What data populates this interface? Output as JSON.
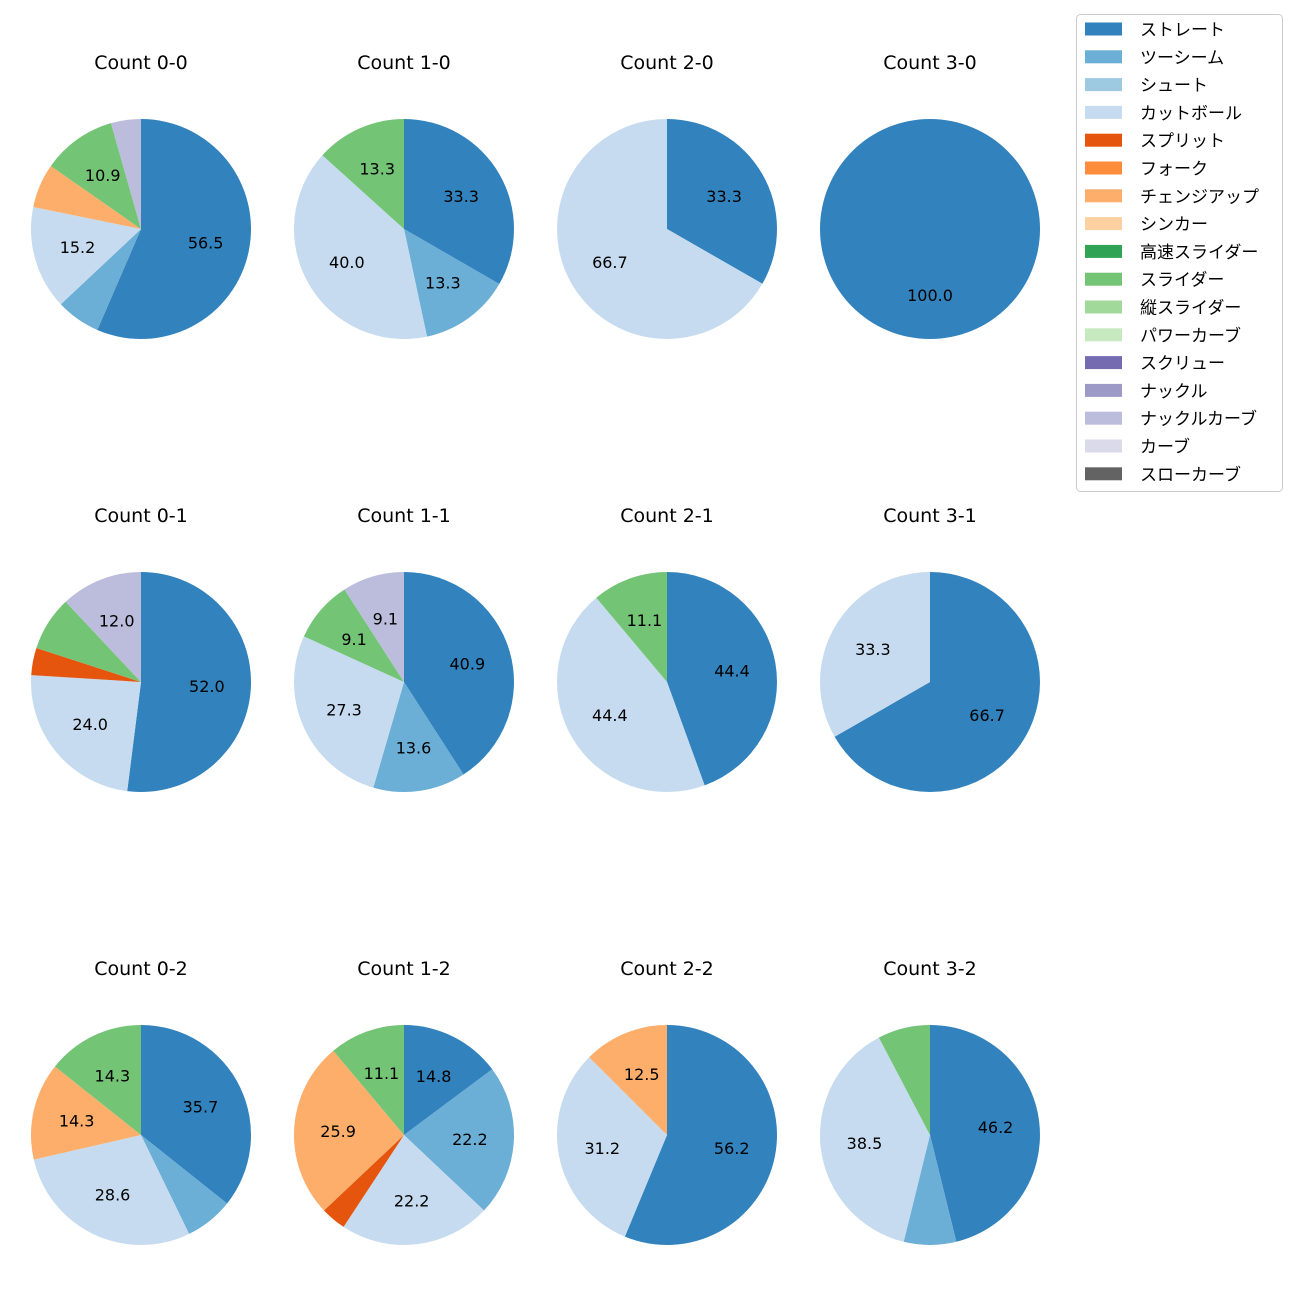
{
  "legend": {
    "items": [
      {
        "name": "ストレート",
        "color": "#3182bd"
      },
      {
        "name": "ツーシーム",
        "color": "#6baed6"
      },
      {
        "name": "シュート",
        "color": "#9ecae1"
      },
      {
        "name": "カットボール",
        "color": "#c6dbef"
      },
      {
        "name": "スプリット",
        "color": "#e6550d"
      },
      {
        "name": "フォーク",
        "color": "#fd8d3c"
      },
      {
        "name": "チェンジアップ",
        "color": "#fdae6b"
      },
      {
        "name": "シンカー",
        "color": "#fdd0a2"
      },
      {
        "name": "高速スライダー",
        "color": "#31a354"
      },
      {
        "name": "スライダー",
        "color": "#74c476"
      },
      {
        "name": "縦スライダー",
        "color": "#a1d99b"
      },
      {
        "name": "パワーカーブ",
        "color": "#c7e9c0"
      },
      {
        "name": "スクリュー",
        "color": "#756bb1"
      },
      {
        "name": "ナックル",
        "color": "#9e9ac8"
      },
      {
        "name": "ナックルカーブ",
        "color": "#bcbddc"
      },
      {
        "name": "カーブ",
        "color": "#dadaeb"
      },
      {
        "name": "スローカーブ",
        "color": "#636363"
      }
    ]
  },
  "chart_data": [
    {
      "type": "pie",
      "title": "Count 0-0",
      "slices": [
        {
          "label": "ストレート",
          "value": 56.5,
          "text": "56.5"
        },
        {
          "label": "ツーシーム",
          "value": 6.5,
          "text": ""
        },
        {
          "label": "カットボール",
          "value": 15.2,
          "text": "15.2"
        },
        {
          "label": "チェンジアップ",
          "value": 6.5,
          "text": ""
        },
        {
          "label": "スライダー",
          "value": 10.9,
          "text": "10.9"
        },
        {
          "label": "ナックルカーブ",
          "value": 4.4,
          "text": ""
        }
      ]
    },
    {
      "type": "pie",
      "title": "Count 1-0",
      "slices": [
        {
          "label": "ストレート",
          "value": 33.3,
          "text": "33.3"
        },
        {
          "label": "ツーシーム",
          "value": 13.3,
          "text": "13.3"
        },
        {
          "label": "カットボール",
          "value": 40.0,
          "text": "40.0"
        },
        {
          "label": "スライダー",
          "value": 13.3,
          "text": "13.3"
        }
      ]
    },
    {
      "type": "pie",
      "title": "Count 2-0",
      "slices": [
        {
          "label": "ストレート",
          "value": 33.3,
          "text": "33.3"
        },
        {
          "label": "カットボール",
          "value": 66.7,
          "text": "66.7"
        }
      ]
    },
    {
      "type": "pie",
      "title": "Count 3-0",
      "slices": [
        {
          "label": "ストレート",
          "value": 100.0,
          "text": "100.0"
        }
      ]
    },
    {
      "type": "pie",
      "title": "Count 0-1",
      "slices": [
        {
          "label": "ストレート",
          "value": 52.0,
          "text": "52.0"
        },
        {
          "label": "カットボール",
          "value": 24.0,
          "text": "24.0"
        },
        {
          "label": "スプリット",
          "value": 4.0,
          "text": ""
        },
        {
          "label": "スライダー",
          "value": 8.0,
          "text": ""
        },
        {
          "label": "ナックルカーブ",
          "value": 12.0,
          "text": "12.0"
        }
      ]
    },
    {
      "type": "pie",
      "title": "Count 1-1",
      "slices": [
        {
          "label": "ストレート",
          "value": 40.9,
          "text": "40.9"
        },
        {
          "label": "ツーシーム",
          "value": 13.6,
          "text": "13.6"
        },
        {
          "label": "カットボール",
          "value": 27.3,
          "text": "27.3"
        },
        {
          "label": "スライダー",
          "value": 9.1,
          "text": "9.1"
        },
        {
          "label": "ナックルカーブ",
          "value": 9.1,
          "text": "9.1"
        }
      ]
    },
    {
      "type": "pie",
      "title": "Count 2-1",
      "slices": [
        {
          "label": "ストレート",
          "value": 44.4,
          "text": "44.4"
        },
        {
          "label": "カットボール",
          "value": 44.4,
          "text": "44.4"
        },
        {
          "label": "スライダー",
          "value": 11.1,
          "text": "11.1"
        }
      ]
    },
    {
      "type": "pie",
      "title": "Count 3-1",
      "slices": [
        {
          "label": "ストレート",
          "value": 66.7,
          "text": "66.7"
        },
        {
          "label": "カットボール",
          "value": 33.3,
          "text": "33.3"
        }
      ]
    },
    {
      "type": "pie",
      "title": "Count 0-2",
      "slices": [
        {
          "label": "ストレート",
          "value": 35.7,
          "text": "35.7"
        },
        {
          "label": "ツーシーム",
          "value": 7.1,
          "text": ""
        },
        {
          "label": "カットボール",
          "value": 28.6,
          "text": "28.6"
        },
        {
          "label": "チェンジアップ",
          "value": 14.3,
          "text": "14.3"
        },
        {
          "label": "スライダー",
          "value": 14.3,
          "text": "14.3"
        }
      ]
    },
    {
      "type": "pie",
      "title": "Count 1-2",
      "slices": [
        {
          "label": "ストレート",
          "value": 14.8,
          "text": "14.8"
        },
        {
          "label": "ツーシーム",
          "value": 22.2,
          "text": "22.2"
        },
        {
          "label": "カットボール",
          "value": 22.2,
          "text": "22.2"
        },
        {
          "label": "スプリット",
          "value": 3.7,
          "text": ""
        },
        {
          "label": "チェンジアップ",
          "value": 25.9,
          "text": "25.9"
        },
        {
          "label": "スライダー",
          "value": 11.1,
          "text": "11.1"
        }
      ]
    },
    {
      "type": "pie",
      "title": "Count 2-2",
      "slices": [
        {
          "label": "ストレート",
          "value": 56.2,
          "text": "56.2"
        },
        {
          "label": "カットボール",
          "value": 31.2,
          "text": "31.2"
        },
        {
          "label": "チェンジアップ",
          "value": 12.5,
          "text": "12.5"
        }
      ]
    },
    {
      "type": "pie",
      "title": "Count 3-2",
      "slices": [
        {
          "label": "ストレート",
          "value": 46.2,
          "text": "46.2"
        },
        {
          "label": "ツーシーム",
          "value": 7.7,
          "text": ""
        },
        {
          "label": "カットボール",
          "value": 38.5,
          "text": "38.5"
        },
        {
          "label": "スライダー",
          "value": 7.7,
          "text": ""
        }
      ]
    }
  ]
}
